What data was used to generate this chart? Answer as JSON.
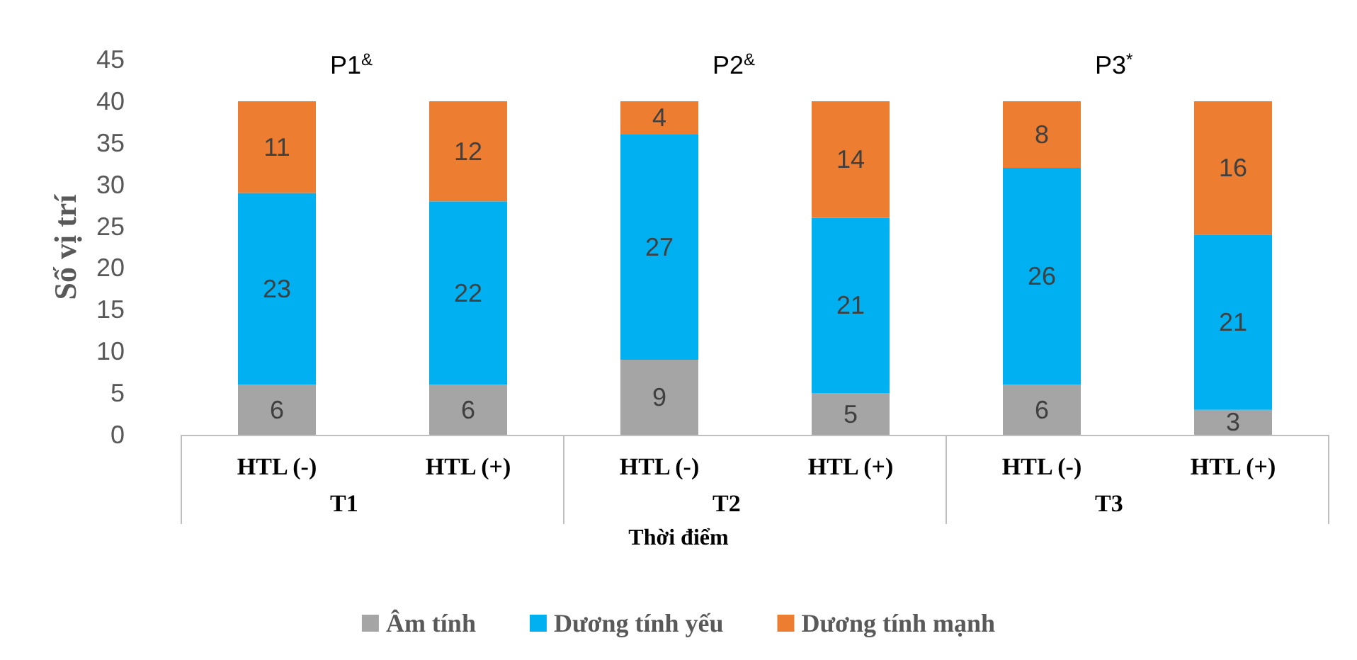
{
  "chart_data": {
    "type": "bar",
    "stacked": true,
    "xlabel": "Thời điểm",
    "ylabel": "Số vị trí",
    "categories": [
      "HTL (-)",
      "HTL (+)",
      "HTL (-)",
      "HTL (+)",
      "HTL (-)",
      "HTL (+)"
    ],
    "series": [
      {
        "name": "Âm tính",
        "color": "#a5a5a5",
        "values": [
          6,
          6,
          9,
          5,
          6,
          3
        ]
      },
      {
        "name": "Dương tính yếu",
        "color": "#00b0f0",
        "values": [
          23,
          22,
          27,
          21,
          26,
          21
        ]
      },
      {
        "name": "Dương tính mạnh",
        "color": "#ed7d31",
        "values": [
          11,
          12,
          4,
          14,
          8,
          16
        ]
      }
    ],
    "ylim": [
      0,
      45
    ],
    "yticks": [
      0,
      5,
      10,
      15,
      20,
      25,
      30,
      35,
      40,
      45
    ],
    "grid": false,
    "legend": "bottom",
    "data_labels": true,
    "annotations": [
      "P1$^{&}$",
      "P2$^{&}$",
      "P3$^{*}$",
      "T1",
      "T2",
      "T3"
    ]
  }
}
